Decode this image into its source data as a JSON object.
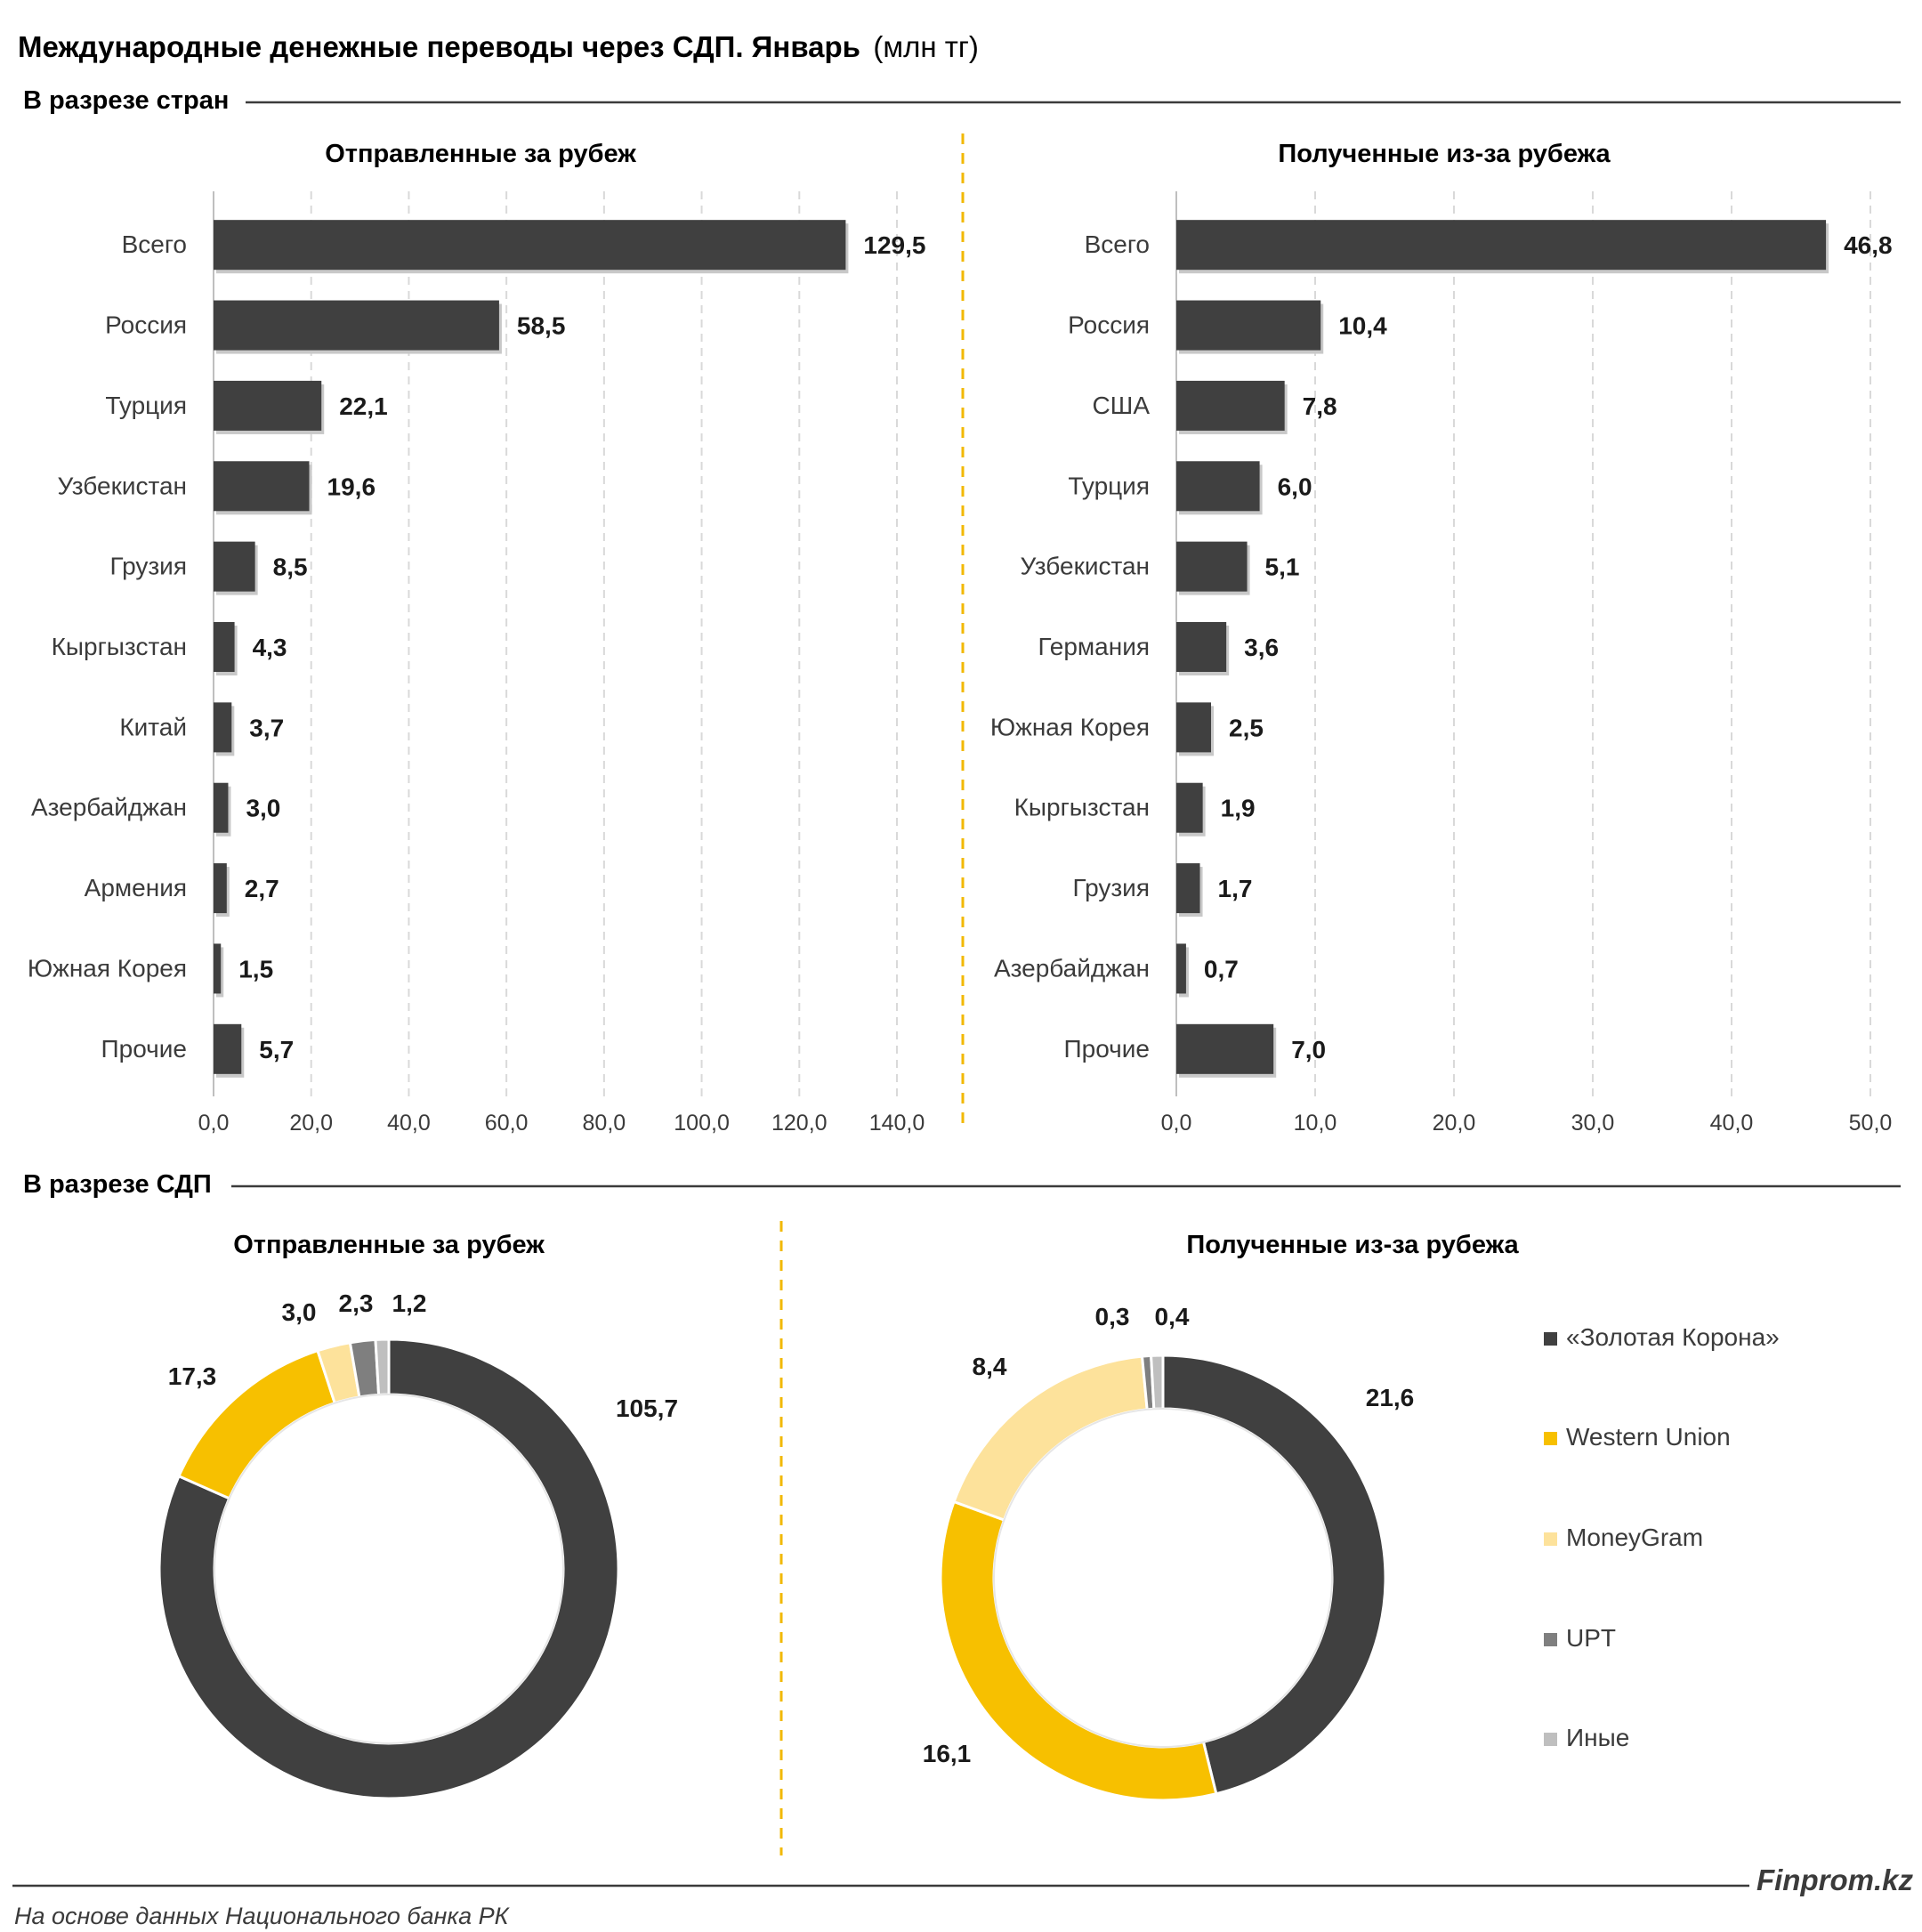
{
  "title": "Международные денежные переводы через СДП. Январь",
  "unit": "(млн тг)",
  "section_countries": "В разрезе стран",
  "section_sdp": "В разрезе СДП",
  "source": "На основе данных Национального банка РК",
  "brand": "Finprom.kz",
  "colors": {
    "bar": "#404040",
    "divider": "#f2b800",
    "grid": "#d9d9d9"
  },
  "chart_data": [
    {
      "type": "bar",
      "orientation": "horizontal",
      "title": "Отправленные за рубеж",
      "categories": [
        "Всего",
        "Россия",
        "Турция",
        "Узбекистан",
        "Грузия",
        "Кыргызстан",
        "Китай",
        "Азербайджан",
        "Армения",
        "Южная Корея",
        "Прочие"
      ],
      "values": [
        129.5,
        58.5,
        22.1,
        19.6,
        8.5,
        4.3,
        3.7,
        3.0,
        2.7,
        1.5,
        5.7
      ],
      "value_labels": [
        "129,5",
        "58,5",
        "22,1",
        "19,6",
        "8,5",
        "4,3",
        "3,7",
        "3,0",
        "2,7",
        "1,5",
        "5,7"
      ],
      "xlim": [
        0,
        140
      ],
      "ticks": [
        "0,0",
        "20,0",
        "40,0",
        "60,0",
        "80,0",
        "100,0",
        "120,0",
        "140,0"
      ],
      "grid": true
    },
    {
      "type": "bar",
      "orientation": "horizontal",
      "title": "Полученные из-за рубежа",
      "categories": [
        "Всего",
        "Россия",
        "США",
        "Турция",
        "Узбекистан",
        "Германия",
        "Южная Корея",
        "Кыргызстан",
        "Грузия",
        "Азербайджан",
        "Прочие"
      ],
      "values": [
        46.8,
        10.4,
        7.8,
        6.0,
        5.1,
        3.6,
        2.5,
        1.9,
        1.7,
        0.7,
        7.0
      ],
      "value_labels": [
        "46,8",
        "10,4",
        "7,8",
        "6,0",
        "5,1",
        "3,6",
        "2,5",
        "1,9",
        "1,7",
        "0,7",
        "7,0"
      ],
      "xlim": [
        0,
        50
      ],
      "ticks": [
        "0,0",
        "10,0",
        "20,0",
        "30,0",
        "40,0",
        "50,0"
      ],
      "grid": true
    },
    {
      "type": "pie",
      "variant": "donut",
      "title": "Отправленные за рубеж",
      "labels": [
        "«Золотая Корона»",
        "Western Union",
        "MoneyGram",
        "UPT",
        "Иные"
      ],
      "values": [
        105.7,
        17.3,
        3.0,
        2.3,
        1.2
      ],
      "value_labels": [
        "105,7",
        "17,3",
        "3,0",
        "2,3",
        "1,2"
      ],
      "colors": [
        "#404040",
        "#f7c000",
        "#fde29b",
        "#7f7f7f",
        "#bfbfbf"
      ]
    },
    {
      "type": "pie",
      "variant": "donut",
      "title": "Полученные из-за рубежа",
      "labels": [
        "«Золотая Корона»",
        "Western Union",
        "MoneyGram",
        "UPT",
        "Иные"
      ],
      "values": [
        21.6,
        16.1,
        8.4,
        0.3,
        0.4
      ],
      "value_labels": [
        "21,6",
        "16,1",
        "8,4",
        "0,3",
        "0,4"
      ],
      "colors": [
        "#404040",
        "#f7c000",
        "#fde29b",
        "#7f7f7f",
        "#bfbfbf"
      ]
    }
  ],
  "legend": {
    "position": "right",
    "items": [
      "«Золотая Корона»",
      "Western Union",
      "MoneyGram",
      "UPT",
      "Иные"
    ],
    "colors": [
      "#404040",
      "#f7c000",
      "#fde29b",
      "#7f7f7f",
      "#bfbfbf"
    ]
  }
}
